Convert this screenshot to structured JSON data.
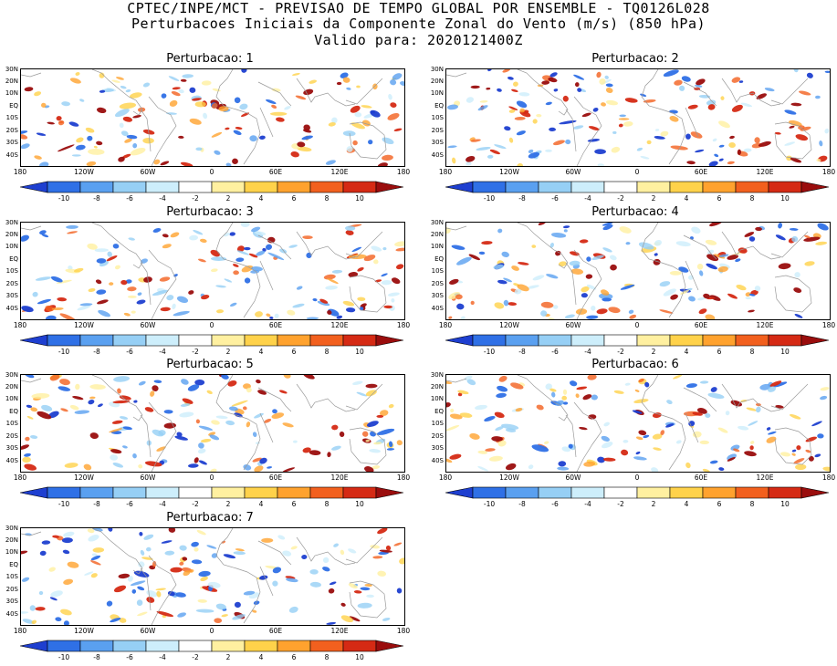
{
  "header": {
    "line1": "CPTEC/INPE/MCT - PREVISAO DE TEMPO GLOBAL POR ENSEMBLE - TQ0126L028",
    "line2": "Perturbacoes Iniciais da Componente Zonal do Vento (m/s) (850 hPa)",
    "line3": "Valido para: 2020121400Z"
  },
  "panels": [
    {
      "title": "Perturbacao: 1"
    },
    {
      "title": "Perturbacao: 2"
    },
    {
      "title": "Perturbacao: 3"
    },
    {
      "title": "Perturbacao: 4"
    },
    {
      "title": "Perturbacao: 5"
    },
    {
      "title": "Perturbacao: 6"
    },
    {
      "title": "Perturbacao: 7"
    }
  ],
  "axes": {
    "lat_labels": [
      "30N",
      "20N",
      "10N",
      "EQ",
      "10S",
      "20S",
      "30S",
      "40S"
    ],
    "lon_labels": [
      "180",
      "120W",
      "60W",
      "0",
      "60E",
      "120E",
      "180"
    ]
  },
  "colorbar": {
    "labels": [
      "-10",
      "-8",
      "-6",
      "-4",
      "-2",
      "2",
      "4",
      "6",
      "8",
      "10"
    ],
    "colors": [
      "#1e3fd0",
      "#2f70e6",
      "#5aa0f0",
      "#96cff5",
      "#cdeefb",
      "#ffffff",
      "#fff0a0",
      "#ffd24a",
      "#ffa22e",
      "#f2601e",
      "#d52a14",
      "#9a0d0d"
    ]
  }
}
